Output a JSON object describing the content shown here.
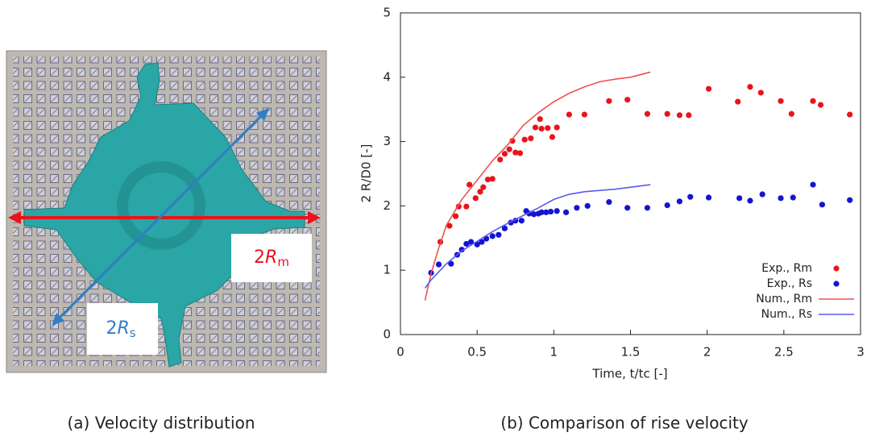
{
  "left_panel": {
    "caption": "(a) Velocity distribution",
    "label_m": [
      "2",
      "R",
      "m"
    ],
    "label_s": [
      "2",
      "R",
      "s"
    ]
  },
  "chart_data": {
    "type": "scatter",
    "caption": "(b) Comparison of rise velocity",
    "xlabel": "Time, t/tc [-]",
    "ylabel": "2 R/D0 [-]",
    "xlim": [
      0,
      3
    ],
    "xticks": [
      0,
      0.5,
      1,
      1.5,
      2,
      2.5,
      3
    ],
    "ylim": [
      0,
      5
    ],
    "yticks": [
      0,
      1,
      2,
      3,
      4,
      5
    ],
    "legend": "lower right",
    "series": [
      {
        "name": "Exp., Rm",
        "color": "#e8141c",
        "style": "points",
        "x": [
          0.26,
          0.32,
          0.36,
          0.38,
          0.43,
          0.45,
          0.49,
          0.52,
          0.54,
          0.57,
          0.6,
          0.65,
          0.68,
          0.71,
          0.73,
          0.75,
          0.78,
          0.81,
          0.85,
          0.88,
          0.91,
          0.92,
          0.96,
          0.99,
          1.02,
          1.1,
          1.2,
          1.36,
          1.48,
          1.61,
          1.74,
          1.82,
          1.88,
          2.01,
          2.2,
          2.28,
          2.35,
          2.48,
          2.55,
          2.69,
          2.74,
          2.93
        ],
        "values": [
          1.44,
          1.69,
          1.84,
          1.99,
          1.99,
          2.33,
          2.12,
          2.22,
          2.29,
          2.41,
          2.42,
          2.72,
          2.81,
          2.88,
          3.01,
          2.83,
          2.82,
          3.03,
          3.05,
          3.22,
          3.35,
          3.2,
          3.21,
          3.07,
          3.22,
          3.42,
          3.42,
          3.63,
          3.65,
          3.43,
          3.43,
          3.41,
          3.41,
          3.82,
          3.62,
          3.85,
          3.76,
          3.63,
          3.43,
          3.63,
          3.57,
          3.42
        ]
      },
      {
        "name": "Exp., Rs",
        "color": "#1414d2",
        "style": "points",
        "x": [
          0.2,
          0.25,
          0.33,
          0.37,
          0.4,
          0.43,
          0.46,
          0.5,
          0.53,
          0.56,
          0.6,
          0.64,
          0.68,
          0.72,
          0.75,
          0.79,
          0.82,
          0.84,
          0.87,
          0.9,
          0.92,
          0.95,
          0.98,
          1.02,
          1.08,
          1.15,
          1.22,
          1.36,
          1.48,
          1.61,
          1.74,
          1.82,
          1.89,
          2.01,
          2.21,
          2.28,
          2.36,
          2.48,
          2.56,
          2.69,
          2.75,
          2.93
        ],
        "values": [
          0.96,
          1.09,
          1.1,
          1.24,
          1.32,
          1.41,
          1.44,
          1.4,
          1.44,
          1.49,
          1.53,
          1.55,
          1.65,
          1.74,
          1.77,
          1.77,
          1.92,
          1.88,
          1.87,
          1.88,
          1.9,
          1.9,
          1.91,
          1.92,
          1.9,
          1.97,
          2.0,
          2.06,
          1.97,
          1.97,
          2.01,
          2.07,
          2.14,
          2.13,
          2.12,
          2.08,
          2.18,
          2.12,
          2.13,
          2.33,
          2.02,
          2.09
        ]
      },
      {
        "name": "Num., Rm",
        "color": "#f0504f",
        "style": "line",
        "x": [
          0.16,
          0.2,
          0.25,
          0.3,
          0.4,
          0.5,
          0.6,
          0.7,
          0.8,
          0.9,
          1.0,
          1.1,
          1.2,
          1.3,
          1.4,
          1.5,
          1.63
        ],
        "values": [
          0.53,
          0.95,
          1.35,
          1.7,
          2.1,
          2.4,
          2.7,
          2.95,
          3.25,
          3.45,
          3.62,
          3.75,
          3.85,
          3.93,
          3.97,
          4.0,
          4.08
        ]
      },
      {
        "name": "Num., Rs",
        "color": "#5a5af0",
        "style": "line",
        "x": [
          0.16,
          0.2,
          0.3,
          0.4,
          0.5,
          0.6,
          0.7,
          0.8,
          0.9,
          1.0,
          1.1,
          1.2,
          1.4,
          1.63
        ],
        "values": [
          0.72,
          0.85,
          1.1,
          1.3,
          1.45,
          1.6,
          1.73,
          1.85,
          1.97,
          2.1,
          2.18,
          2.22,
          2.26,
          2.33
        ]
      }
    ]
  }
}
